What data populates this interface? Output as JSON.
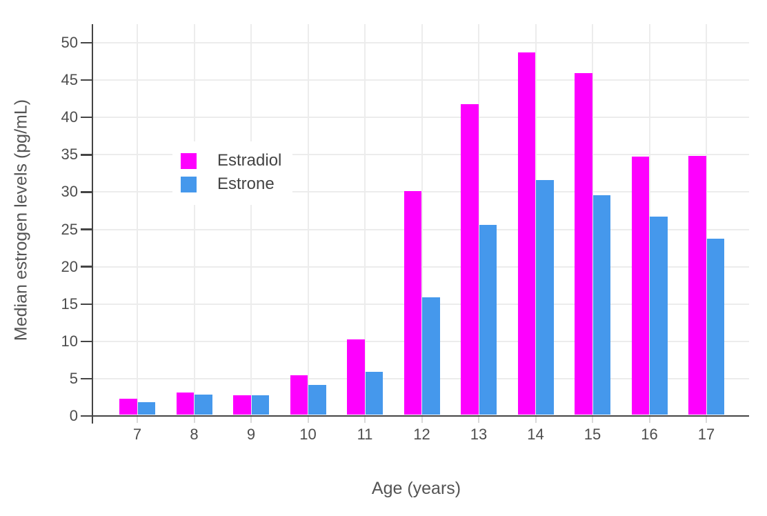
{
  "chart_data": {
    "type": "bar",
    "mode": "grouped",
    "title": "",
    "xlabel": "Age (years)",
    "ylabel": "Median estrogen levels (pg/mL)",
    "categories": [
      "7",
      "8",
      "9",
      "10",
      "11",
      "12",
      "13",
      "14",
      "15",
      "16",
      "17"
    ],
    "series": [
      {
        "name": "Estradiol",
        "color": "#fe00fe",
        "values": [
          2.2,
          3.0,
          2.6,
          5.3,
          10.1,
          30.0,
          41.6,
          48.6,
          45.8,
          34.6,
          34.7
        ]
      },
      {
        "name": "Estrone",
        "color": "#4598ec",
        "values": [
          1.7,
          2.7,
          2.6,
          4.0,
          5.8,
          15.8,
          25.5,
          31.5,
          29.4,
          26.6,
          23.6
        ]
      }
    ],
    "ylim": [
      0,
      52.5
    ],
    "yticks": [
      0,
      5,
      10,
      15,
      20,
      25,
      30,
      35,
      40,
      45,
      50
    ],
    "grid": true,
    "legend_position": "inside-upper-left"
  },
  "colors": {
    "background": "#ffffff",
    "grid": "#ececec",
    "axis_line": "#444444",
    "tick_label": "#4d4d4d",
    "axis_title": "#545454",
    "legend_text": "#444444"
  }
}
